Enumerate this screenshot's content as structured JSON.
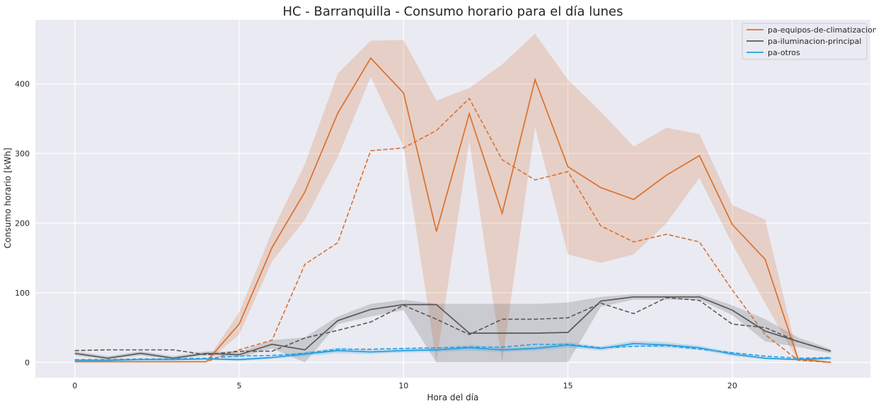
{
  "chart_data": {
    "type": "line",
    "title": "HC - Barranquilla - Consumo horario para el día lunes",
    "xlabel": "Hora del día",
    "ylabel": "Consumo horario [kWh]",
    "xlim": [
      -1.2,
      24.2
    ],
    "ylim": [
      -22,
      492
    ],
    "xticks": [
      0,
      5,
      10,
      15,
      20
    ],
    "yticks": [
      0,
      100,
      200,
      300,
      400
    ],
    "grid": true,
    "legend_position": "top-right",
    "x": [
      0,
      1,
      2,
      3,
      4,
      5,
      6,
      7,
      8,
      9,
      10,
      11,
      12,
      13,
      14,
      15,
      16,
      17,
      18,
      19,
      20,
      21,
      22,
      23
    ],
    "series": [
      {
        "name": "pa-equipos-de-climatizacion",
        "color": "#d9712e",
        "values": [
          1,
          1,
          1,
          1,
          1,
          55,
          165,
          245,
          358,
          437,
          387,
          188,
          357,
          214,
          406,
          281,
          251,
          234,
          269,
          297,
          198,
          148,
          5,
          0
        ],
        "band_low": [
          0,
          0,
          0,
          0,
          0,
          40,
          145,
          205,
          295,
          410,
          310,
          0,
          318,
          0,
          338,
          155,
          143,
          155,
          200,
          265,
          170,
          85,
          2,
          0
        ],
        "band_high": [
          2,
          2,
          2,
          2,
          2,
          72,
          188,
          285,
          415,
          462,
          463,
          376,
          394,
          428,
          472,
          406,
          360,
          310,
          337,
          328,
          226,
          205,
          8,
          1
        ],
        "dashed_values": [
          1,
          1,
          1,
          1,
          1,
          18,
          32,
          141,
          172,
          304,
          308,
          333,
          379,
          291,
          262,
          274,
          196,
          173,
          184,
          173,
          104,
          40,
          3,
          0
        ]
      },
      {
        "name": "pa-iluminacion-principal",
        "color": "#595959",
        "values": [
          13,
          6,
          13,
          6,
          13,
          11,
          26,
          18,
          60,
          76,
          83,
          83,
          42,
          42,
          42,
          43,
          88,
          94,
          94,
          94,
          75,
          45,
          30,
          16
        ],
        "band_low": [
          10,
          4,
          10,
          4,
          10,
          7,
          20,
          0,
          55,
          66,
          75,
          0,
          0,
          0,
          0,
          0,
          80,
          90,
          90,
          90,
          68,
          30,
          22,
          13
        ],
        "band_high": [
          16,
          9,
          16,
          9,
          16,
          15,
          32,
          36,
          66,
          84,
          90,
          84,
          84,
          84,
          84,
          86,
          94,
          98,
          98,
          98,
          82,
          62,
          36,
          19
        ],
        "dashed_values": [
          17,
          18,
          18,
          18,
          11,
          16,
          16,
          35,
          46,
          58,
          82,
          62,
          40,
          62,
          62,
          64,
          85,
          70,
          93,
          89,
          55,
          50,
          30,
          16
        ]
      },
      {
        "name": "pa-otros",
        "color": "#24a0e0",
        "values": [
          3,
          3,
          4,
          4,
          5,
          4,
          7,
          12,
          17,
          15,
          17,
          18,
          21,
          18,
          20,
          25,
          20,
          27,
          25,
          21,
          12,
          6,
          4,
          6
        ],
        "band_low": [
          2,
          2,
          3,
          3,
          4,
          2,
          5,
          9,
          13,
          12,
          14,
          15,
          17,
          15,
          17,
          21,
          17,
          23,
          21,
          18,
          9,
          4,
          3,
          4
        ],
        "band_high": [
          4,
          4,
          5,
          5,
          6,
          6,
          9,
          15,
          21,
          18,
          20,
          21,
          25,
          21,
          23,
          29,
          23,
          31,
          29,
          24,
          15,
          8,
          5,
          8
        ],
        "dashed_values": [
          4,
          4,
          5,
          5,
          6,
          9,
          10,
          13,
          19,
          19,
          20,
          21,
          22,
          22,
          26,
          26,
          21,
          23,
          24,
          19,
          14,
          9,
          6,
          7
        ]
      }
    ]
  }
}
